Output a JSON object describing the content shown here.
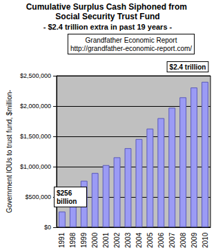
{
  "chart_data": {
    "type": "bar",
    "title": "Cumulative Surplus Cash Siphoned from Social Security Trust Fund",
    "subtitle": "- $2.4 trillion extra in past 19 years -",
    "ylabel": "Government IOUs to trust fund, $million-",
    "annotations": [
      "Grandfather Economic Report",
      "http://grandfather-economic-report.com/",
      "$256 billion",
      "$2.4 trillion"
    ],
    "categories": [
      "1991",
      "1998",
      "1999",
      "2000",
      "2001",
      "2002",
      "2003",
      "2004",
      "2005",
      "2006",
      "2007",
      "2008",
      "2009",
      "2010"
    ],
    "values": [
      256000,
      657000,
      765000,
      894000,
      1024000,
      1153000,
      1304000,
      1455000,
      1627000,
      1800000,
      1972000,
      2144000,
      2306000,
      2400000
    ],
    "color": "#9b9bf5",
    "ylim": [
      0,
      2500000
    ],
    "yticks": [
      {
        "value": 0,
        "label": "$0"
      },
      {
        "value": 500000,
        "label": "$500,000"
      },
      {
        "value": 1000000,
        "label": "$1,000,000"
      },
      {
        "value": 1500000,
        "label": "$1,500,000"
      },
      {
        "value": 2000000,
        "label": "$2,000,000"
      },
      {
        "value": 2500000,
        "label": "$2,500,000"
      }
    ],
    "grid": true
  }
}
